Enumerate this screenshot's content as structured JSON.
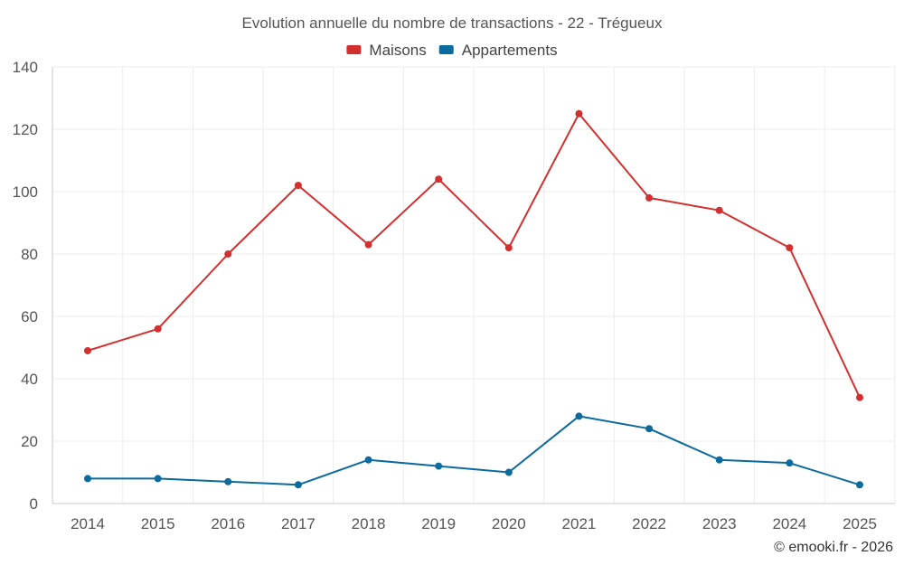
{
  "chart_data": {
    "type": "line",
    "title": "Evolution annuelle du nombre de transactions - 22 - Trégueux",
    "categories": [
      "2014",
      "2015",
      "2016",
      "2017",
      "2018",
      "2019",
      "2020",
      "2021",
      "2022",
      "2023",
      "2024",
      "2025"
    ],
    "series": [
      {
        "name": "Maisons",
        "color": "#d32f2f",
        "values": [
          49,
          56,
          80,
          102,
          83,
          104,
          82,
          125,
          98,
          94,
          82,
          34
        ]
      },
      {
        "name": "Appartements",
        "color": "#0b6a9e",
        "values": [
          8,
          8,
          7,
          6,
          14,
          12,
          10,
          28,
          24,
          14,
          13,
          6
        ]
      }
    ],
    "ylim": [
      0,
      140
    ],
    "yticks": [
      0,
      20,
      40,
      60,
      80,
      100,
      120,
      140
    ],
    "grid": true,
    "legend": "top-center"
  },
  "credit": "© emooki.fr - 2026"
}
